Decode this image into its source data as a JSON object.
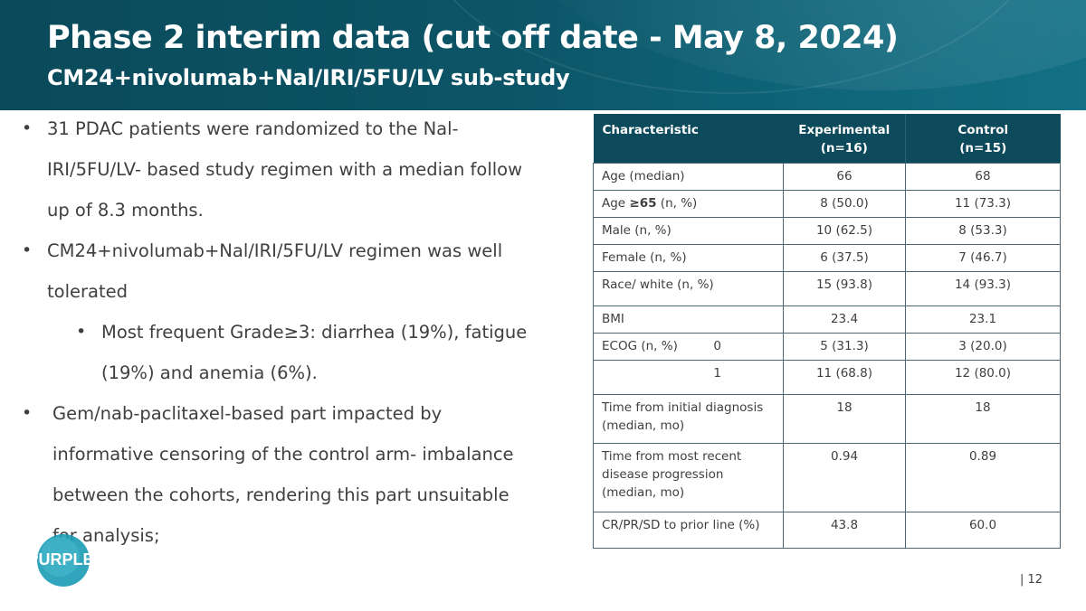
{
  "header": {
    "title": "Phase 2 interim data (cut off date - May 8, 2024)",
    "subtitle": "CM24+nivolumab+Nal/IRI/5FU/LV sub-study"
  },
  "bullets": [
    "31 PDAC patients were randomized to the Nal-IRI/5FU/LV- based study regimen with a median follow up of 8.3 months.",
    "CM24+nivolumab+Nal/IRI/5FU/LV regimen was well tolerated",
    "Most frequent Grade≥3: diarrhea (19%), fatigue (19%) and anemia (6%).",
    "Gem/nab-paclitaxel-based part impacted by informative censoring of the control arm- imbalance between the cohorts, rendering this part unsuitable for analysis;"
  ],
  "bullet_lines": {
    "b1": [
      "31 PDAC patients were randomized to the Nal-",
      "IRI/5FU/LV- based study regimen with a median follow",
      "up of 8.3 months."
    ],
    "b2": [
      "CM24+nivolumab+Nal/IRI/5FU/LV regimen was well",
      "tolerated"
    ],
    "b3": [
      "Most frequent Grade≥3: diarrhea (19%), fatigue",
      "(19%) and anemia (6%)."
    ],
    "b4": [
      "Gem/nab-paclitaxel-based part impacted by",
      "informative censoring of the control arm- imbalance",
      "between the cohorts, rendering this part unsuitable",
      "for analysis;"
    ]
  },
  "table": {
    "headers": {
      "characteristic": "Characteristic",
      "experimental": "Experimental",
      "experimental_n": "(n=16)",
      "control": "Control",
      "control_n": "(n=15)"
    },
    "rows": {
      "age_median": {
        "label": "Age (median)",
        "exp": "66",
        "ctl": "68"
      },
      "age_65": {
        "label_pre": "Age ",
        "label_bold": "≥65",
        "label_post": " (n, %)",
        "exp": "8 (50.0)",
        "ctl": "11 (73.3)"
      },
      "male": {
        "label": "Male  (n, %)",
        "exp": "10 (62.5)",
        "ctl": "8 (53.3)"
      },
      "female": {
        "label": "Female (n, %)",
        "exp": "6 (37.5)",
        "ctl": "7 (46.7)"
      },
      "race": {
        "label": "Race/ white (n, %)",
        "exp": "15 (93.8)",
        "ctl": "14 (93.3)"
      },
      "bmi": {
        "label": "BMI",
        "exp": "23.4",
        "ctl": "23.1"
      },
      "ecog0": {
        "label": "ECOG (n, %)",
        "sub": "0",
        "exp": "5 (31.3)",
        "ctl": "3 (20.0)"
      },
      "ecog1": {
        "sub": "1",
        "exp": "11 (68.8)",
        "ctl": "12 (80.0)"
      },
      "time_diag": {
        "label1": "Time from initial diagnosis",
        "label2": "(median, mo)",
        "exp": "18",
        "ctl": "18"
      },
      "time_prog": {
        "label1": "Time from most recent",
        "label2": "disease progression",
        "label3": "(median, mo)",
        "exp": "0.94",
        "ctl": "0.89"
      },
      "crprsd": {
        "label": "CR/PR/SD to prior line (%)",
        "exp": "43.8",
        "ctl": "60.0"
      }
    }
  },
  "logo": {
    "text": "PURPLE"
  },
  "footer": {
    "page": "| 12"
  },
  "colors": {
    "header_bg": "#0c5466",
    "table_header_bg": "#0c4a5c",
    "logo": "#1a9bb5"
  }
}
